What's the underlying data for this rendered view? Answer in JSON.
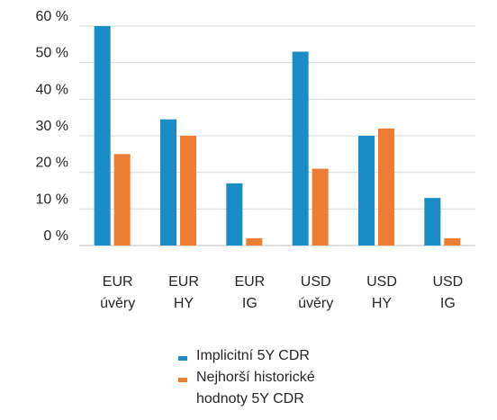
{
  "chart_data": {
    "type": "bar",
    "categories": [
      [
        "EUR",
        "úvěry"
      ],
      [
        "EUR",
        "HY"
      ],
      [
        "EUR",
        "IG"
      ],
      [
        "USD",
        "úvěry"
      ],
      [
        "USD",
        "HY"
      ],
      [
        "USD",
        "IG"
      ]
    ],
    "series": [
      {
        "name": "Implicitní 5Y CDR",
        "color": "#1a8cc8",
        "values": [
          60,
          34.5,
          17,
          53,
          30,
          13
        ]
      },
      {
        "name": "Nejhorší historické hodnoty 5Y CDR",
        "color": "#ed7d31",
        "values": [
          25,
          30,
          2,
          21,
          32,
          2
        ]
      }
    ],
    "yticks": [
      "0 %",
      "10 %",
      "20 %",
      "30 %",
      "40 %",
      "50 %",
      "60 %"
    ],
    "ylim": [
      0,
      60
    ],
    "grid": true,
    "legend_position": "bottom",
    "title": "",
    "xlabel": "",
    "ylabel": ""
  },
  "legend": {
    "items": [
      {
        "label_lines": [
          "Implicitní 5Y CDR"
        ]
      },
      {
        "label_lines": [
          "Nejhorší historické",
          "hodnoty 5Y CDR"
        ]
      }
    ]
  }
}
